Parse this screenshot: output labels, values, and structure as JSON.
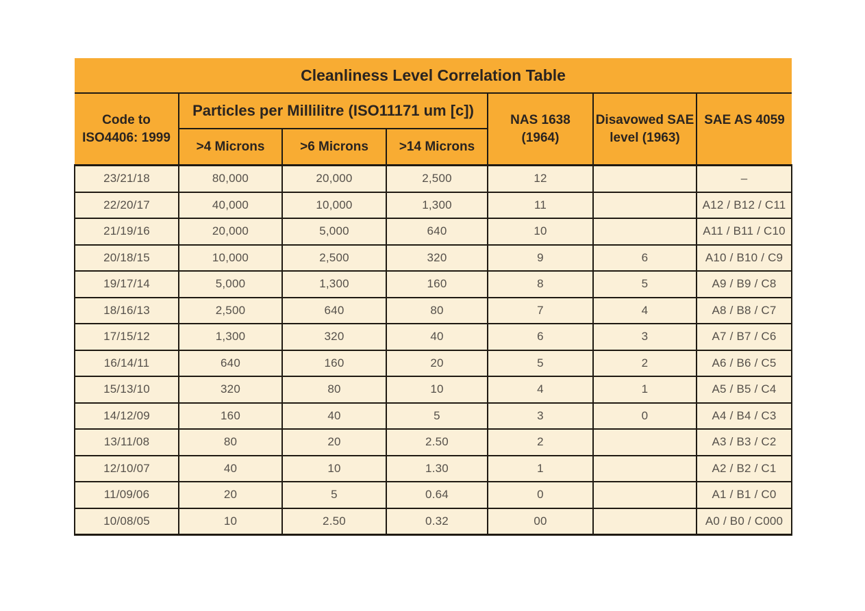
{
  "title": "Cleanliness Level Correlation Table",
  "colors": {
    "header_background": "#F8AC33",
    "row_background": "#FBF0D8",
    "grid_line": "#1F1A12",
    "header_text": "#2A2420",
    "data_text": "#55504A",
    "page_background": "#FFFFFF"
  },
  "table": {
    "header": {
      "code_col": "Code to\nISO4406: 1999",
      "particles_group": "Particles per Millilitre (ISO11171 um [c])",
      "micron_cols": [
        ">4 Microns",
        ">6 Microns",
        ">14 Microns"
      ],
      "nas_col": "NAS 1638\n(1964)",
      "disavowed_col": "Disavowed SAE\nlevel (1963)",
      "sae_as_col": "SAE AS 4059"
    },
    "col_keys": [
      "iso4406-code",
      "gt4-microns",
      "gt6-microns",
      "gt14-microns",
      "nas-1638",
      "disavowed-sae-level",
      "sae-as-4059"
    ],
    "rows": [
      [
        "23/21/18",
        "80,000",
        "20,000",
        "2,500",
        "12",
        "",
        "–"
      ],
      [
        "22/20/17",
        "40,000",
        "10,000",
        "1,300",
        "11",
        "",
        "A12 / B12 / C11"
      ],
      [
        "21/19/16",
        "20,000",
        "5,000",
        "640",
        "10",
        "",
        "A11 / B11 / C10"
      ],
      [
        "20/18/15",
        "10,000",
        "2,500",
        "320",
        "9",
        "6",
        "A10 / B10 / C9"
      ],
      [
        "19/17/14",
        "5,000",
        "1,300",
        "160",
        "8",
        "5",
        "A9 / B9 / C8"
      ],
      [
        "18/16/13",
        "2,500",
        "640",
        "80",
        "7",
        "4",
        "A8 / B8 / C7"
      ],
      [
        "17/15/12",
        "1,300",
        "320",
        "40",
        "6",
        "3",
        "A7 / B7 / C6"
      ],
      [
        "16/14/11",
        "640",
        "160",
        "20",
        "5",
        "2",
        "A6 / B6 / C5"
      ],
      [
        "15/13/10",
        "320",
        "80",
        "10",
        "4",
        "1",
        "A5 / B5 / C4"
      ],
      [
        "14/12/09",
        "160",
        "40",
        "5",
        "3",
        "0",
        "A4 / B4 / C3"
      ],
      [
        "13/11/08",
        "80",
        "20",
        "2.50",
        "2",
        "",
        "A3 / B3 / C2"
      ],
      [
        "12/10/07",
        "40",
        "10",
        "1.30",
        "1",
        "",
        "A2 / B2 / C1"
      ],
      [
        "11/09/06",
        "20",
        "5",
        "0.64",
        "0",
        "",
        "A1 / B1 / C0"
      ],
      [
        "10/08/05",
        "10",
        "2.50",
        "0.32",
        "00",
        "",
        "A0 / B0 / C000"
      ]
    ]
  }
}
